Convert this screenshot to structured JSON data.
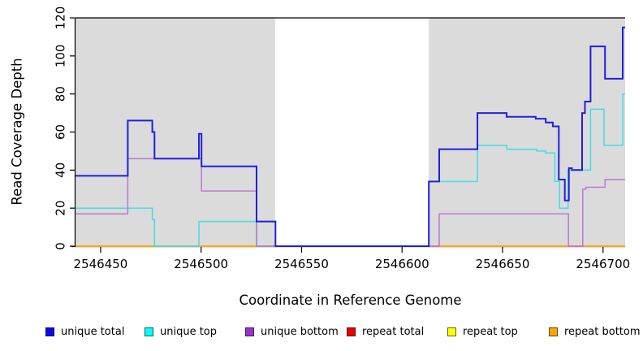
{
  "chart_data": {
    "type": "line",
    "subtype": "step-coverage",
    "title": "",
    "xlabel": "Coordinate in Reference Genome",
    "ylabel": "Read Coverage Depth",
    "xlim": [
      2546437.5,
      2546711
    ],
    "ylim": [
      0,
      120
    ],
    "x_ticks": [
      2546450,
      2546500,
      2546550,
      2546600,
      2546650,
      2546700
    ],
    "y_ticks": [
      0,
      20,
      40,
      60,
      80,
      100,
      120
    ],
    "grid": "off",
    "legend_position": "bottom",
    "colors": {
      "unique_total": "#2020DD",
      "unique_top": "#3FE0E6",
      "unique_bottom": "#B973D2",
      "repeat_total": "#DE0000",
      "repeat_top": "#FFFF00",
      "repeat_bottom": "#FFA500",
      "shading": "#DBDBDB",
      "axis": "#000000"
    },
    "shaded_regions": [
      {
        "x0": 2546437.5,
        "x1": 2546536.8
      },
      {
        "x0": 2546613.3,
        "x1": 2546711
      }
    ],
    "series": [
      {
        "name": "repeat total",
        "key": "repeat_total",
        "width": 1.2,
        "points": [
          [
            2546437.5,
            0
          ]
        ]
      },
      {
        "name": "repeat top",
        "key": "repeat_top",
        "width": 1.2,
        "points": [
          [
            2546437.5,
            0
          ]
        ]
      },
      {
        "name": "repeat bottom",
        "key": "repeat_bottom",
        "width": 2,
        "points": [
          [
            2546437.5,
            0
          ]
        ]
      },
      {
        "name": "unique top",
        "key": "unique_top",
        "width": 1.5,
        "points": [
          [
            2546437.5,
            20
          ],
          [
            2546475.7,
            14
          ],
          [
            2546476.8,
            0
          ],
          [
            2546498.9,
            13
          ],
          [
            2546527.6,
            0
          ],
          [
            2546613.3,
            34
          ],
          [
            2546637.5,
            53
          ],
          [
            2546652,
            51
          ],
          [
            2546667,
            50
          ],
          [
            2546671.5,
            49
          ],
          [
            2546676,
            34
          ],
          [
            2546678.3,
            20
          ],
          [
            2546682.6,
            40
          ],
          [
            2546693.8,
            72
          ],
          [
            2546700.5,
            53
          ],
          [
            2546709.8,
            80
          ]
        ]
      },
      {
        "name": "unique bottom",
        "key": "unique_bottom",
        "width": 1.4,
        "points": [
          [
            2546437.5,
            17
          ],
          [
            2546463.5,
            46
          ],
          [
            2546500.2,
            29
          ],
          [
            2546527.6,
            0
          ],
          [
            2546618.5,
            17
          ],
          [
            2546682.8,
            0
          ],
          [
            2546689.9,
            30
          ],
          [
            2546691.5,
            31
          ],
          [
            2546701,
            35
          ]
        ]
      },
      {
        "name": "unique total",
        "key": "unique_total",
        "width": 2,
        "points": [
          [
            2546437.5,
            37
          ],
          [
            2546463.5,
            66
          ],
          [
            2546475.7,
            60
          ],
          [
            2546476.8,
            46
          ],
          [
            2546498.9,
            59
          ],
          [
            2546500.2,
            42
          ],
          [
            2546527.6,
            13
          ],
          [
            2546537,
            0
          ],
          [
            2546613.3,
            34
          ],
          [
            2546618.5,
            51
          ],
          [
            2546637.5,
            70
          ],
          [
            2546652,
            68
          ],
          [
            2546666.5,
            67
          ],
          [
            2546671.5,
            65
          ],
          [
            2546675,
            63
          ],
          [
            2546678,
            35
          ],
          [
            2546681,
            24
          ],
          [
            2546683,
            41
          ],
          [
            2546684.5,
            40
          ],
          [
            2546689.6,
            70
          ],
          [
            2546691,
            76
          ],
          [
            2546693.8,
            105
          ],
          [
            2546701,
            88
          ],
          [
            2546709.8,
            115
          ]
        ]
      }
    ],
    "legend": [
      {
        "label": "unique total",
        "swatch": "#0A0AEE"
      },
      {
        "label": "unique top",
        "swatch": "#00FFFF"
      },
      {
        "label": "unique bottom",
        "swatch": "#9B30D0"
      },
      {
        "label": "repeat total",
        "swatch": "#EE0000"
      },
      {
        "label": "repeat top",
        "swatch": "#FFFF00"
      },
      {
        "label": "repeat bottom",
        "swatch": "#FFA500"
      }
    ]
  }
}
